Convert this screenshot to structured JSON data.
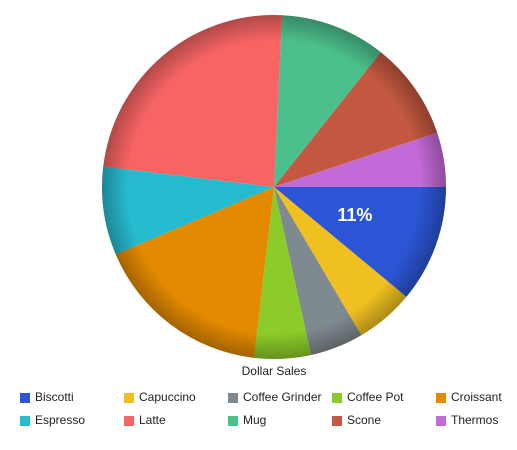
{
  "chart_data": {
    "type": "pie",
    "title": "Dollar Sales",
    "categories": [
      "Biscotti",
      "Capuccino",
      "Coffee Grinder",
      "Coffee Pot",
      "Croissant",
      "Espresso",
      "Latte",
      "Mug",
      "Scone",
      "Thermos"
    ],
    "values": [
      11,
      5.5,
      5,
      5.3,
      16.7,
      8.3,
      23.8,
      9.9,
      9.2,
      5.1
    ],
    "value_labels": [
      "11%",
      null,
      null,
      null,
      null,
      null,
      null,
      null,
      null,
      null
    ],
    "colors": [
      "#2b55d4",
      "#f0c020",
      "#7f8a90",
      "#8ccc2a",
      "#e38a00",
      "#26bcd0",
      "#f86464",
      "#4cc08c",
      "#c45840",
      "#c46ad8"
    ]
  }
}
